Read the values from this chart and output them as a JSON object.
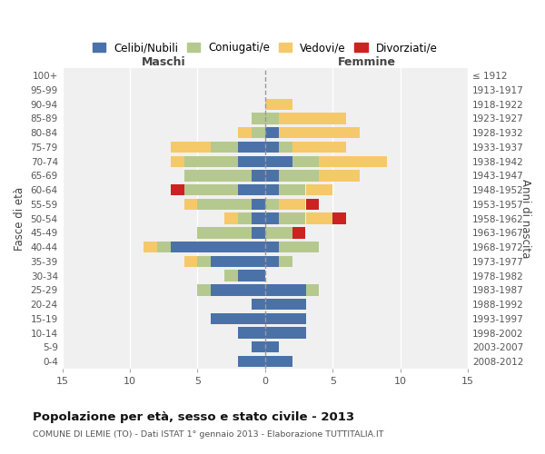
{
  "age_groups": [
    "0-4",
    "5-9",
    "10-14",
    "15-19",
    "20-24",
    "25-29",
    "30-34",
    "35-39",
    "40-44",
    "45-49",
    "50-54",
    "55-59",
    "60-64",
    "65-69",
    "70-74",
    "75-79",
    "80-84",
    "85-89",
    "90-94",
    "95-99",
    "100+"
  ],
  "birth_years": [
    "2008-2012",
    "2003-2007",
    "1998-2002",
    "1993-1997",
    "1988-1992",
    "1983-1987",
    "1978-1982",
    "1973-1977",
    "1968-1972",
    "1963-1967",
    "1958-1962",
    "1953-1957",
    "1948-1952",
    "1943-1947",
    "1938-1942",
    "1933-1937",
    "1928-1932",
    "1923-1927",
    "1918-1922",
    "1913-1917",
    "≤ 1912"
  ],
  "colors": {
    "celibi": "#4a72a8",
    "coniugati": "#b5c98e",
    "vedovi": "#f5c96a",
    "divorziati": "#cc2222"
  },
  "maschi": {
    "celibi": [
      2,
      1,
      2,
      4,
      1,
      4,
      2,
      4,
      7,
      1,
      1,
      1,
      2,
      1,
      2,
      2,
      0,
      0,
      0,
      0,
      0
    ],
    "coniugati": [
      0,
      0,
      0,
      0,
      0,
      1,
      1,
      1,
      1,
      4,
      1,
      4,
      4,
      5,
      4,
      2,
      1,
      1,
      0,
      0,
      0
    ],
    "vedovi": [
      0,
      0,
      0,
      0,
      0,
      0,
      0,
      1,
      1,
      0,
      1,
      1,
      0,
      0,
      1,
      3,
      1,
      0,
      0,
      0,
      0
    ],
    "divorziati": [
      0,
      0,
      0,
      0,
      0,
      0,
      0,
      0,
      0,
      0,
      0,
      0,
      1,
      0,
      0,
      0,
      0,
      0,
      0,
      0,
      0
    ]
  },
  "femmine": {
    "celibi": [
      2,
      1,
      3,
      3,
      3,
      3,
      0,
      1,
      1,
      0,
      1,
      0,
      1,
      1,
      2,
      1,
      1,
      0,
      0,
      0,
      0
    ],
    "coniugati": [
      0,
      0,
      0,
      0,
      0,
      1,
      0,
      1,
      3,
      2,
      2,
      1,
      2,
      3,
      2,
      1,
      0,
      1,
      0,
      0,
      0
    ],
    "vedovi": [
      0,
      0,
      0,
      0,
      0,
      0,
      0,
      0,
      0,
      0,
      2,
      2,
      2,
      3,
      5,
      4,
      6,
      5,
      2,
      0,
      0
    ],
    "divorziati": [
      0,
      0,
      0,
      0,
      0,
      0,
      0,
      0,
      0,
      1,
      1,
      1,
      0,
      0,
      0,
      0,
      0,
      0,
      0,
      0,
      0
    ]
  },
  "xlim": 15,
  "title": "Popolazione per età, sesso e stato civile - 2013",
  "subtitle": "COMUNE DI LEMIE (TO) - Dati ISTAT 1° gennaio 2013 - Elaborazione TUTTITALIA.IT",
  "ylabel_left": "Fasce di età",
  "ylabel_right": "Anni di nascita",
  "xlabel_left": "Maschi",
  "xlabel_right": "Femmine",
  "legend_labels": [
    "Celibi/Nubili",
    "Coniugati/e",
    "Vedovi/e",
    "Divorziati/e"
  ],
  "bg_color": "#f0f0f0"
}
